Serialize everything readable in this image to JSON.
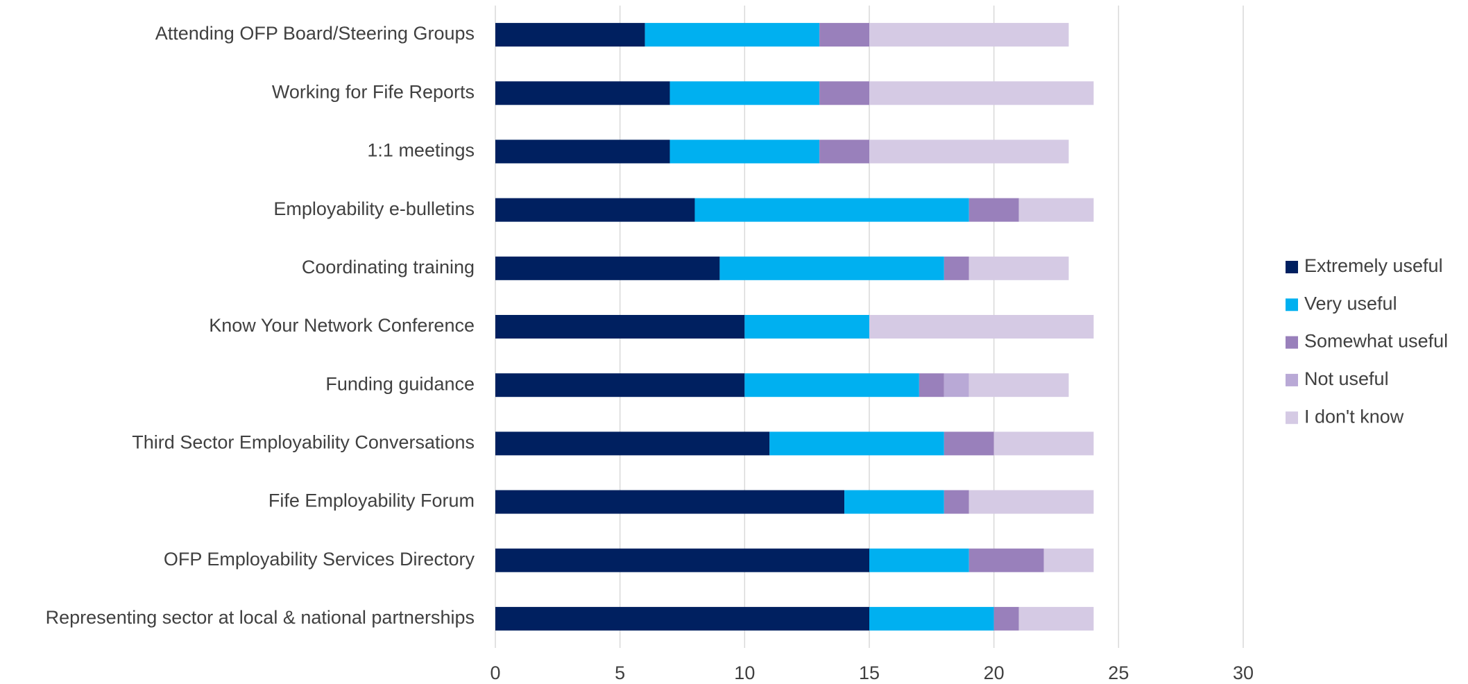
{
  "chart_data": {
    "type": "stacked-bar-horizontal",
    "categories": [
      "Attending OFP Board/Steering Groups",
      "Working for Fife Reports",
      "1:1 meetings",
      "Employability e-bulletins",
      "Coordinating training",
      "Know Your Network Conference",
      "Funding guidance",
      "Third Sector Employability Conversations",
      "Fife Employability Forum",
      "OFP Employability Services Directory",
      "Representing sector at local & national partnerships"
    ],
    "series": [
      {
        "name": "Extremely useful",
        "color": "#002060",
        "values": [
          6,
          7,
          7,
          8,
          9,
          10,
          10,
          11,
          14,
          15,
          15
        ]
      },
      {
        "name": "Very useful",
        "color": "#00b0f0",
        "values": [
          7,
          6,
          6,
          11,
          9,
          5,
          7,
          7,
          4,
          4,
          5
        ]
      },
      {
        "name": "Somewhat useful",
        "color": "#9980bb",
        "values": [
          2,
          2,
          2,
          2,
          1,
          0,
          1,
          2,
          1,
          3,
          1
        ]
      },
      {
        "name": "Not useful",
        "color": "#b9a9d6",
        "values": [
          0,
          0,
          0,
          0,
          0,
          0,
          1,
          0,
          0,
          0,
          0
        ]
      },
      {
        "name": "I don't know",
        "color": "#d5cae4",
        "values": [
          8,
          9,
          8,
          3,
          4,
          9,
          4,
          4,
          5,
          2,
          3
        ]
      }
    ],
    "xlim": [
      0,
      30
    ],
    "xticks": [
      0,
      5,
      10,
      15,
      20,
      25,
      30
    ],
    "grid": true,
    "legend": "right"
  }
}
